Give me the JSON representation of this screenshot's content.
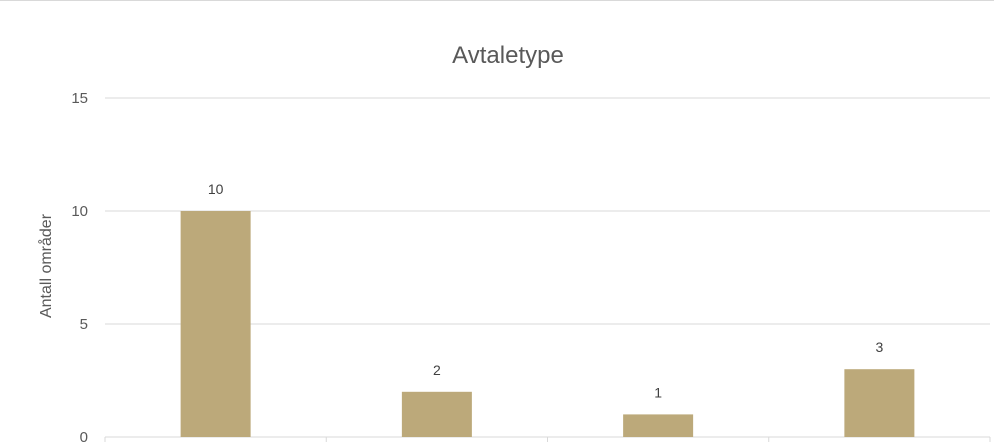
{
  "chart_data": {
    "type": "bar",
    "title": "Avtaletype",
    "ylabel": "Antall områder",
    "xlabel": "",
    "ylim": [
      0,
      15
    ],
    "yticks": [
      0,
      5,
      10,
      15
    ],
    "categories": [
      "",
      "",
      "",
      ""
    ],
    "values": [
      10,
      2,
      1,
      3
    ],
    "data_labels": [
      "10",
      "2",
      "1",
      "3"
    ],
    "grid": true,
    "legend": "none",
    "bar_color": "#bca97a",
    "grid_color": "#d9d9d9"
  }
}
